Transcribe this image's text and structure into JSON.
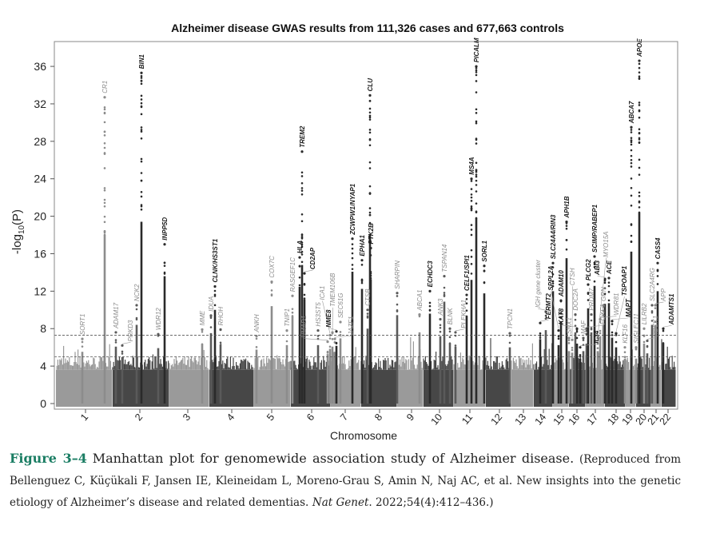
{
  "chart_data": {
    "type": "scatter",
    "subtype": "manhattan",
    "title": "Alzheimer disease GWAS results from 111,326 cases and 677,663 controls",
    "xlabel": "Chromosome",
    "ylabel": "-log10(P)",
    "ylabel_main": "-log",
    "ylabel_sub": "10",
    "ylabel_tail": "(P)",
    "ylim": [
      0,
      37
    ],
    "yticks": [
      0,
      4,
      8,
      12,
      16,
      20,
      24,
      28,
      32,
      36
    ],
    "chromosomes": [
      "1",
      "2",
      "3",
      "4",
      "5",
      "6",
      "7",
      "8",
      "9",
      "10",
      "11",
      "12",
      "13",
      "14",
      "15",
      "16",
      "17",
      "18",
      "19",
      "20",
      "21",
      "22"
    ],
    "thresholds": [
      7.3,
      5
    ],
    "colors": {
      "odd": "#9a9a9a",
      "even": "#474747",
      "label_dark": "#1a1a1a",
      "label_light": "#8a8a8a",
      "threshold": "#555555"
    },
    "peaks": [
      {
        "gene": "SORT1",
        "chr": "1",
        "value": 6.9,
        "style": "light"
      },
      {
        "gene": "CR1",
        "chr": "1",
        "value": 32.7,
        "style": "light"
      },
      {
        "gene": "ADAM17",
        "chr": "2",
        "value": 7.6,
        "style": "light"
      },
      {
        "gene": "PRKD3",
        "chr": "2",
        "value": 6.2,
        "style": "light"
      },
      {
        "gene": "NCK2",
        "chr": "2",
        "value": 10.5,
        "style": "light"
      },
      {
        "gene": "BIN1",
        "chr": "2",
        "value": 35.3,
        "style": "dark"
      },
      {
        "gene": "WDR12",
        "chr": "2",
        "value": 7.4,
        "style": "light"
      },
      {
        "gene": "INPP5D",
        "chr": "2",
        "value": 17.0,
        "style": "dark"
      },
      {
        "gene": "MME",
        "chr": "3",
        "value": 7.9,
        "style": "light"
      },
      {
        "gene": "IDUA",
        "chr": "4",
        "value": 9.4,
        "style": "light"
      },
      {
        "gene": "CLNK/HS3ST1",
        "chr": "4",
        "value": 12.5,
        "style": "dark"
      },
      {
        "gene": "RHOH",
        "chr": "4",
        "value": 7.9,
        "style": "light"
      },
      {
        "gene": "ANKH",
        "chr": "5",
        "value": 7.2,
        "style": "light"
      },
      {
        "gene": "COX7C",
        "chr": "5",
        "value": 13.0,
        "style": "light"
      },
      {
        "gene": "TNIP1",
        "chr": "5",
        "value": 7.8,
        "style": "light"
      },
      {
        "gene": "RASGEF1C",
        "chr": "5",
        "value": 11.5,
        "style": "light"
      },
      {
        "gene": "HLA",
        "chr": "6",
        "value": 15.6,
        "style": "dark"
      },
      {
        "gene": "TREM2",
        "chr": "6",
        "value": 26.9,
        "style": "dark"
      },
      {
        "gene": "CD2AP",
        "chr": "6",
        "value": 13.9,
        "style": "dark"
      },
      {
        "gene": "HS3ST5",
        "chr": "6",
        "value": 7.8,
        "style": "light"
      },
      {
        "gene": "UMAD1",
        "chr": "7",
        "value": 6.6,
        "style": "light"
      },
      {
        "gene": "ICA1",
        "chr": "7",
        "value": 7.3,
        "style": "light"
      },
      {
        "gene": "TMEM106B",
        "chr": "7",
        "value": 7.6,
        "style": "light"
      },
      {
        "gene": "JAZF1",
        "chr": "7",
        "value": 6.9,
        "style": "light"
      },
      {
        "gene": "NME8",
        "chr": "7",
        "value": 7.7,
        "style": "dark"
      },
      {
        "gene": "SEC61G",
        "chr": "7",
        "value": 8.7,
        "style": "light"
      },
      {
        "gene": "ZCWPW1/NYAP1",
        "chr": "7",
        "value": 17.6,
        "style": "dark"
      },
      {
        "gene": "EPHA1",
        "chr": "7",
        "value": 15.3,
        "style": "dark"
      },
      {
        "gene": "CTSB",
        "chr": "8",
        "value": 10.0,
        "style": "light"
      },
      {
        "gene": "PTK2B",
        "chr": "8",
        "value": 16.6,
        "style": "dark"
      },
      {
        "gene": "CLU",
        "chr": "8",
        "value": 32.9,
        "style": "dark"
      },
      {
        "gene": "SHARPIN",
        "chr": "8",
        "value": 11.8,
        "style": "light"
      },
      {
        "gene": "ABCA1",
        "chr": "9",
        "value": 9.5,
        "style": "light"
      },
      {
        "gene": "ECHDC3",
        "chr": "10",
        "value": 12.0,
        "style": "dark"
      },
      {
        "gene": "ANK3",
        "chr": "10",
        "value": 9.0,
        "style": "light"
      },
      {
        "gene": "TSPAN14",
        "chr": "10",
        "value": 13.6,
        "style": "light"
      },
      {
        "gene": "BLNK",
        "chr": "10",
        "value": 8.0,
        "style": "light"
      },
      {
        "gene": "PLEKHA1",
        "chr": "10",
        "value": 7.6,
        "style": "light"
      },
      {
        "gene": "CELF1/SPI1",
        "chr": "11",
        "value": 11.6,
        "style": "dark"
      },
      {
        "gene": "MS4A",
        "chr": "11",
        "value": 24.0,
        "style": "dark"
      },
      {
        "gene": "PICALM",
        "chr": "11",
        "value": 36.0,
        "style": "dark"
      },
      {
        "gene": "SORL1",
        "chr": "11",
        "value": 14.7,
        "style": "dark"
      },
      {
        "gene": "TPCN1",
        "chr": "12",
        "value": 7.5,
        "style": "light"
      },
      {
        "gene": "FERMT2",
        "chr": "14",
        "value": 8.6,
        "style": "dark"
      },
      {
        "gene": "IGH gene cluster",
        "chr": "14",
        "value": 9.8,
        "style": "light"
      },
      {
        "gene": "SLC24A4/RIN3",
        "chr": "14",
        "value": 15.0,
        "style": "dark"
      },
      {
        "gene": "SPPL2A",
        "chr": "15",
        "value": 7.8,
        "style": "dark"
      },
      {
        "gene": "ADAM10",
        "chr": "15",
        "value": 11.0,
        "style": "dark"
      },
      {
        "gene": "APH1B",
        "chr": "15",
        "value": 19.4,
        "style": "dark"
      },
      {
        "gene": "SNX1",
        "chr": "15",
        "value": 7.0,
        "style": "light"
      },
      {
        "gene": "CTSH",
        "chr": "15",
        "value": 6.8,
        "style": "light"
      },
      {
        "gene": "DOC2A",
        "chr": "16",
        "value": 9.5,
        "style": "light"
      },
      {
        "gene": "KAT8",
        "chr": "16",
        "value": 8.0,
        "style": "dark"
      },
      {
        "gene": "IL34",
        "chr": "16",
        "value": 6.0,
        "style": "dark"
      },
      {
        "gene": "MAF",
        "chr": "16",
        "value": 7.0,
        "style": "light"
      },
      {
        "gene": "FOXF1",
        "chr": "16",
        "value": 8.0,
        "style": "light"
      },
      {
        "gene": "PLCG2",
        "chr": "16",
        "value": 12.7,
        "style": "dark"
      },
      {
        "gene": "PRDM7",
        "chr": "16",
        "value": 9.5,
        "style": "light"
      },
      {
        "gene": "SCIMP/RABEP1",
        "chr": "17",
        "value": 15.7,
        "style": "dark"
      },
      {
        "gene": "MYO15A",
        "chr": "17",
        "value": 7.0,
        "style": "light"
      },
      {
        "gene": "WDR81",
        "chr": "17",
        "value": 9.0,
        "style": "light"
      },
      {
        "gene": "GRN",
        "chr": "17",
        "value": 10.5,
        "style": "light"
      },
      {
        "gene": "ABI3",
        "chr": "17",
        "value": 13.3,
        "style": "dark"
      },
      {
        "gene": "ACE",
        "chr": "17",
        "value": 13.4,
        "style": "dark"
      },
      {
        "gene": "MAPT",
        "chr": "17",
        "value": 8.8,
        "style": "dark"
      },
      {
        "gene": "TSPOAP1",
        "chr": "17",
        "value": 7.5,
        "style": "dark"
      },
      {
        "gene": "KLF16",
        "chr": "19",
        "value": 6.0,
        "style": "light"
      },
      {
        "gene": "ABCA7",
        "chr": "19",
        "value": 29.5,
        "style": "dark"
      },
      {
        "gene": "SIGLEC11",
        "chr": "19",
        "value": 6.0,
        "style": "light"
      },
      {
        "gene": "APOE",
        "chr": "19",
        "value": 37.0,
        "style": "dark"
      },
      {
        "gene": "LILRB2",
        "chr": "19",
        "value": 8.0,
        "style": "light"
      },
      {
        "gene": "RBCK1",
        "chr": "20",
        "value": 6.7,
        "style": "light"
      },
      {
        "gene": "SLC2A4RG",
        "chr": "20",
        "value": 10.5,
        "style": "light"
      },
      {
        "gene": "APP",
        "chr": "21",
        "value": 10.5,
        "style": "light"
      },
      {
        "gene": "CASS4",
        "chr": "20",
        "value": 15.0,
        "style": "dark"
      },
      {
        "gene": "ADAMTS1",
        "chr": "21",
        "value": 8.0,
        "style": "dark"
      }
    ]
  },
  "caption": {
    "label": "Figure 3–4",
    "main": "Manhattan plot for genomewide association study of Alzheimer disease.",
    "cite_pre": "(Reproduced from Bellenguez C, Küçükali F, Jansen IE, Kleineidam L, Moreno-Grau S, Amin N, Naj AC, et al. New insights into the genetic etiology of Alzheimer’s disease and related dementias.",
    "journal": "Nat Genet",
    "cite_post": ". 2022;54(4):412–436.)"
  }
}
